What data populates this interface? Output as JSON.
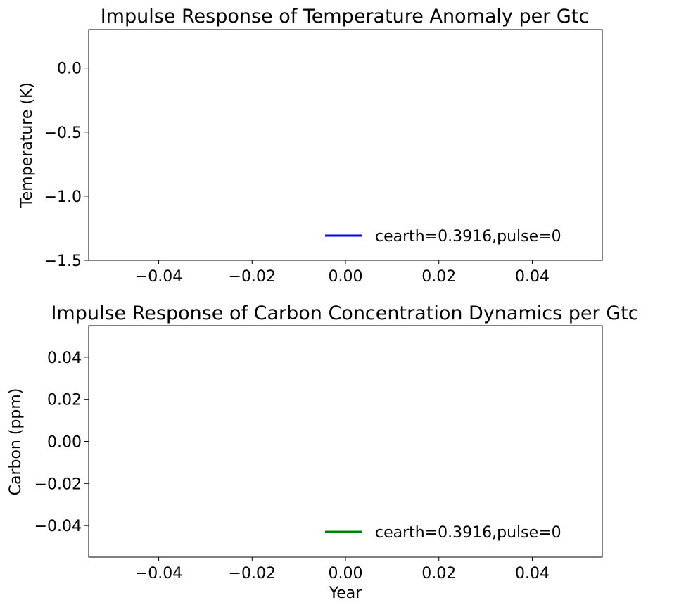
{
  "chart_data": [
    {
      "type": "line",
      "title": "Impulse Response of Temperature Anomaly per Gtc",
      "xlabel": "",
      "ylabel": "Temperature (K)",
      "xlim": [
        -0.055,
        0.055
      ],
      "ylim": [
        -1.5,
        0.3
      ],
      "xticks": [
        -0.04,
        -0.02,
        0.0,
        0.02,
        0.04
      ],
      "xticklabels": [
        "−0.04",
        "−0.02",
        "0.00",
        "0.02",
        "0.04"
      ],
      "yticks": [
        0.0,
        -0.5,
        -1.0,
        -1.5
      ],
      "yticklabels": [
        "0.0",
        "−0.5",
        "−1.0",
        "−1.5"
      ],
      "grid": false,
      "legend_position": "lower-right",
      "series": [
        {
          "name": "cearth=0.3916,pulse=0",
          "color": "#0000ff",
          "x": [],
          "y": []
        }
      ]
    },
    {
      "type": "line",
      "title": "Impulse Response of Carbon Concentration Dynamics per Gtc",
      "xlabel": "Year",
      "ylabel": "Carbon (ppm)",
      "xlim": [
        -0.055,
        0.055
      ],
      "ylim": [
        -0.055,
        0.055
      ],
      "xticks": [
        -0.04,
        -0.02,
        0.0,
        0.02,
        0.04
      ],
      "xticklabels": [
        "−0.04",
        "−0.02",
        "0.00",
        "0.02",
        "0.04"
      ],
      "yticks": [
        0.04,
        0.02,
        0.0,
        -0.02,
        -0.04
      ],
      "yticklabels": [
        "0.04",
        "0.02",
        "0.00",
        "−0.02",
        "−0.04"
      ],
      "grid": false,
      "legend_position": "lower-right",
      "series": [
        {
          "name": "cearth=0.3916,pulse=0",
          "color": "#008000",
          "x": [],
          "y": []
        }
      ]
    }
  ]
}
